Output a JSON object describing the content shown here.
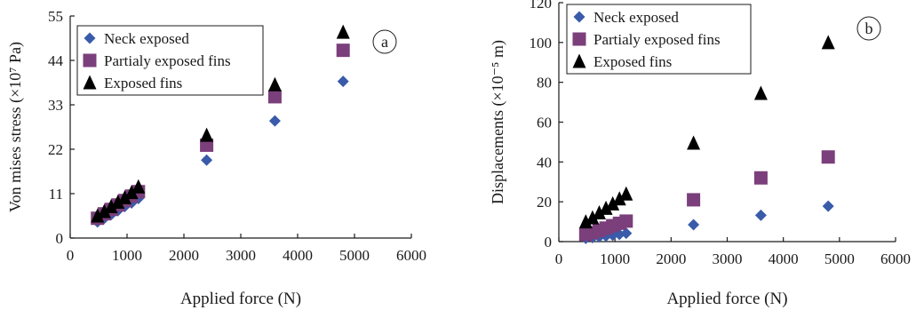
{
  "chart_data": [
    {
      "type": "scatter",
      "panel_label": "a",
      "xlabel": "Applied force (N)",
      "ylabel": "Von mises stress (×10⁷ Pa)",
      "xlim": [
        0,
        6000
      ],
      "ylim": [
        0,
        55
      ],
      "xticks": [
        0,
        1000,
        2000,
        3000,
        4000,
        5000,
        6000
      ],
      "yticks": [
        0,
        11,
        22,
        33,
        44,
        55
      ],
      "legend_position": "top-left",
      "grid": false,
      "series": [
        {
          "name": "Neck exposed",
          "marker": "diamond",
          "color": "#3a5ba9",
          "x": [
            480,
            600,
            720,
            840,
            960,
            1080,
            1200,
            2400,
            3600,
            4800
          ],
          "y": [
            4.0,
            4.9,
            5.8,
            6.8,
            7.8,
            8.7,
            9.8,
            19.3,
            29.0,
            38.8
          ]
        },
        {
          "name": "Partialy exposed fins",
          "marker": "square",
          "color": "#7b3f7b",
          "x": [
            480,
            600,
            720,
            840,
            960,
            1080,
            1200,
            2400,
            3600,
            4800
          ],
          "y": [
            4.9,
            6.0,
            7.1,
            8.2,
            9.3,
            10.4,
            11.5,
            23.0,
            35.0,
            46.5
          ]
        },
        {
          "name": "Exposed fins",
          "marker": "triangle",
          "color": "#000000",
          "x": [
            480,
            600,
            720,
            840,
            960,
            1080,
            1200,
            2400,
            3600,
            4800
          ],
          "y": [
            5.5,
            6.6,
            7.8,
            8.9,
            10.0,
            11.3,
            12.7,
            25.5,
            38.0,
            51.0
          ]
        }
      ]
    },
    {
      "type": "scatter",
      "panel_label": "b",
      "xlabel": "Applied force (N)",
      "ylabel": "Displacements (×10⁻⁵ m)",
      "xlim": [
        0,
        6000
      ],
      "ylim": [
        0,
        120
      ],
      "xticks": [
        0,
        1000,
        2000,
        3000,
        4000,
        5000,
        6000
      ],
      "yticks": [
        0,
        20,
        40,
        60,
        80,
        100,
        120
      ],
      "legend_position": "top-left",
      "grid": false,
      "series": [
        {
          "name": "Neck exposed",
          "marker": "diamond",
          "color": "#3a5ba9",
          "x": [
            480,
            600,
            720,
            840,
            960,
            1080,
            1200,
            2400,
            3600,
            4800
          ],
          "y": [
            1.6,
            2.0,
            2.4,
            2.8,
            3.2,
            3.6,
            4.2,
            8.5,
            13.2,
            17.8
          ]
        },
        {
          "name": "Partialy exposed fins",
          "marker": "square",
          "color": "#7b3f7b",
          "x": [
            480,
            600,
            720,
            840,
            960,
            1080,
            1200,
            2400,
            3600,
            4800
          ],
          "y": [
            3.6,
            4.5,
            5.6,
            6.8,
            8.0,
            9.2,
            10.3,
            21.0,
            32.0,
            42.5
          ]
        },
        {
          "name": "Exposed fins",
          "marker": "triangle",
          "color": "#000000",
          "x": [
            480,
            600,
            720,
            840,
            960,
            1080,
            1200,
            2400,
            3600,
            4800
          ],
          "y": [
            10.0,
            12.0,
            14.5,
            16.8,
            19.0,
            21.5,
            24.0,
            49.5,
            74.5,
            100.0
          ]
        }
      ]
    }
  ]
}
